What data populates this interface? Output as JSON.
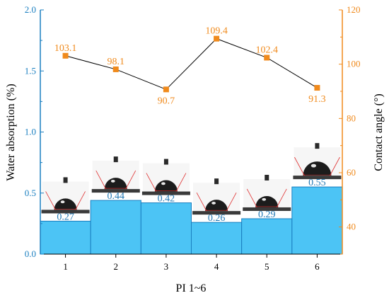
{
  "chart_data": {
    "type": "bar",
    "xlabel": "PI 1~6",
    "categories": [
      "1",
      "2",
      "3",
      "4",
      "5",
      "6"
    ],
    "series": [
      {
        "name": "Water absorption (%)",
        "kind": "bar",
        "axis": "left",
        "values": [
          0.27,
          0.44,
          0.42,
          0.26,
          0.29,
          0.55
        ],
        "labels": [
          "0.27",
          "0.44",
          "0.42",
          "0.26",
          "0.29",
          "0.55"
        ]
      },
      {
        "name": "Contact angle (°)",
        "kind": "line",
        "axis": "right",
        "values": [
          103.1,
          98.1,
          90.7,
          109.4,
          102.4,
          91.3
        ],
        "labels": [
          "103.1",
          "98.1",
          "90.7",
          "109.4",
          "102.4",
          "91.3"
        ]
      }
    ],
    "y_left": {
      "label": "Water absorption  (%)",
      "lim": [
        0,
        2.0
      ],
      "ticks": [
        0.0,
        0.5,
        1.0,
        1.5,
        2.0
      ],
      "tick_labels": [
        "0.0",
        "0.5",
        "1.0",
        "1.5",
        "2.0"
      ]
    },
    "y_right": {
      "label": "Contact angle (°)",
      "lim": [
        30,
        120
      ],
      "ticks": [
        40,
        60,
        80,
        100,
        120
      ],
      "tick_labels": [
        "40",
        "60",
        "80",
        "100",
        "120"
      ]
    },
    "colors": {
      "bar_fill": "#4cc4f5",
      "bar_stroke": "#1a7fc0",
      "left_axis": "#1a7fc0",
      "right_axis": "#f08a1c",
      "marker": "#f08a1c",
      "line": "#000000",
      "bar_label": "#1f77b4",
      "point_label": "#f08a1c"
    },
    "grid": false,
    "legend": "none",
    "insets": "droplet contact-angle photographs above each bar"
  }
}
